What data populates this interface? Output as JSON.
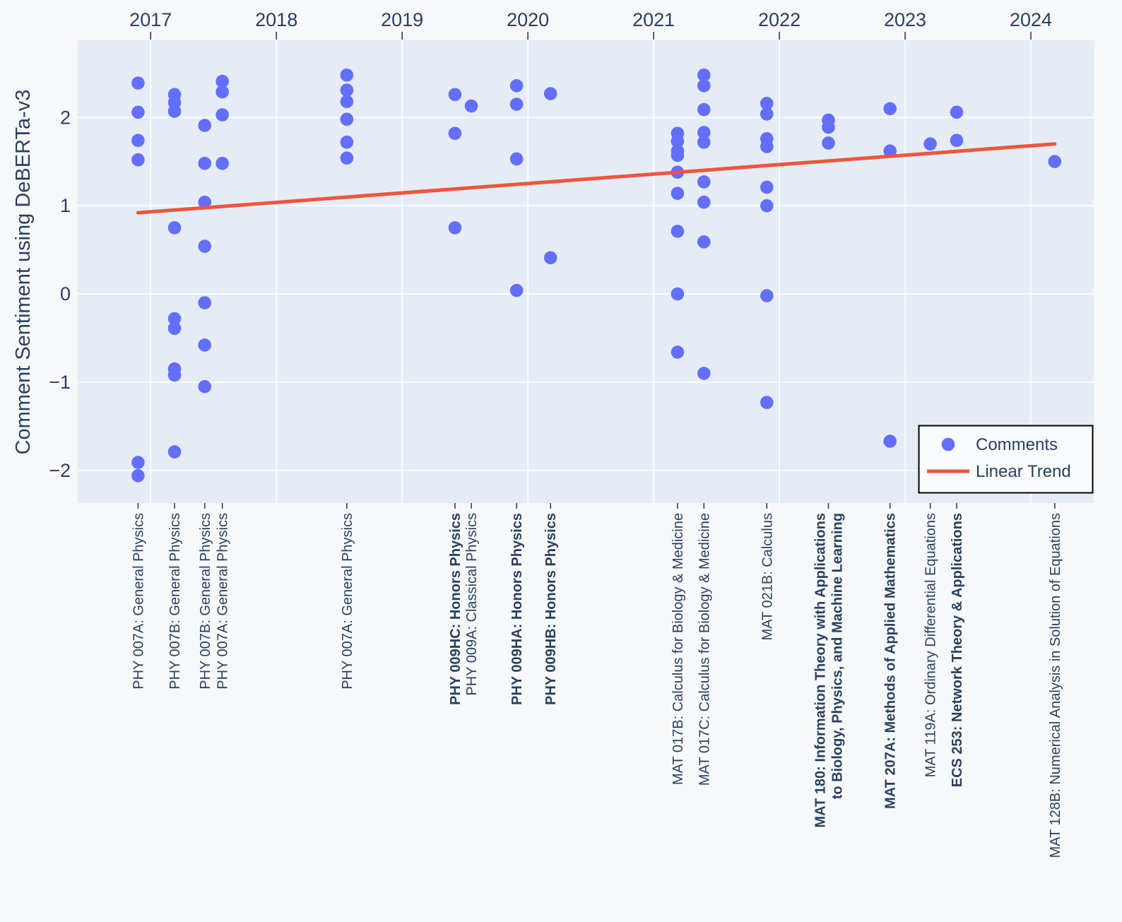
{
  "chart_data": {
    "type": "scatter",
    "title": "",
    "xlabel": "",
    "ylabel": "Comment Sentiment using DeBERTa-v3",
    "x_axis": {
      "position": "top",
      "ticks": [
        2017,
        2018,
        2019,
        2020,
        2021,
        2022,
        2023,
        2024
      ],
      "range": [
        2016.42,
        2024.5
      ]
    },
    "y_axis": {
      "ticks": [
        2,
        1,
        0,
        -1,
        -2
      ],
      "tick_labels": [
        "2",
        "1",
        "0",
        "−1",
        "−2"
      ],
      "range": [
        -2.37,
        2.875
      ]
    },
    "grid": true,
    "legend": {
      "position": "bottom-right",
      "items": [
        {
          "label": "Comments",
          "glyph": "marker",
          "color": "#636EFA"
        },
        {
          "label": "Linear Trend",
          "glyph": "line",
          "color": "#EF553B"
        }
      ]
    },
    "series": [
      {
        "name": "Comments",
        "type": "scatter",
        "color": "#636EFA",
        "columns": [
          {
            "label": "PHY 007A: General Physics",
            "lines": [
              "PHY 007A: General Physics"
            ],
            "bold": false,
            "year": 2016.9,
            "values": [
              2.39,
              2.06,
              1.74,
              1.52,
              -1.91,
              -2.06
            ]
          },
          {
            "label": "PHY 007B: General Physics",
            "lines": [
              "PHY 007B: General Physics"
            ],
            "bold": false,
            "year": 2017.19,
            "values": [
              2.26,
              2.17,
              2.07,
              0.75,
              -0.28,
              -0.39,
              -0.85,
              -0.92,
              -1.79
            ]
          },
          {
            "label": "PHY 007B: General Physics",
            "lines": [
              "PHY 007B: General Physics"
            ],
            "bold": false,
            "year": 2017.43,
            "values": [
              1.91,
              1.48,
              1.04,
              0.54,
              -0.1,
              -0.58,
              -1.05
            ]
          },
          {
            "label": "PHY 007A: General Physics",
            "lines": [
              "PHY 007A: General Physics"
            ],
            "bold": false,
            "year": 2017.57,
            "values": [
              2.41,
              2.29,
              2.03,
              1.48
            ]
          },
          {
            "label": "PHY 007A: General Physics",
            "lines": [
              "PHY 007A: General Physics"
            ],
            "bold": false,
            "year": 2018.56,
            "values": [
              2.48,
              2.31,
              2.18,
              1.98,
              1.72,
              1.54
            ]
          },
          {
            "label": "PHY 009HC: Honors Physics",
            "lines": [
              "PHY 009HC: Honors Physics"
            ],
            "bold": true,
            "year": 2019.42,
            "values": [
              2.26,
              1.82,
              0.75
            ]
          },
          {
            "label": "PHY 009A: Classical Physics",
            "lines": [
              "PHY 009A: Classical Physics"
            ],
            "bold": false,
            "year": 2019.55,
            "values": [
              2.13
            ]
          },
          {
            "label": "PHY 009HA: Honors Physics",
            "lines": [
              "PHY 009HA: Honors Physics"
            ],
            "bold": true,
            "year": 2019.91,
            "values": [
              2.36,
              2.15,
              1.53,
              0.04
            ]
          },
          {
            "label": "PHY 009HB: Honors Physics",
            "lines": [
              "PHY 009HB: Honors Physics"
            ],
            "bold": true,
            "year": 2020.18,
            "values": [
              2.27,
              0.41
            ]
          },
          {
            "label": "MAT 017B: Calculus for Biology & Medicine",
            "lines": [
              "MAT 017B: Calculus for Biology & Medicine"
            ],
            "bold": false,
            "year": 2021.19,
            "values": [
              1.82,
              1.73,
              1.62,
              1.57,
              1.38,
              1.14,
              0.71,
              0.0,
              -0.66
            ]
          },
          {
            "label": "MAT 017C: Calculus for Biology & Medicine",
            "lines": [
              "MAT 017C: Calculus for Biology & Medicine"
            ],
            "bold": false,
            "year": 2021.4,
            "values": [
              2.48,
              2.36,
              2.09,
              1.83,
              1.72,
              1.27,
              1.04,
              0.59,
              -0.9
            ]
          },
          {
            "label": "MAT 021B: Calculus",
            "lines": [
              "MAT 021B: Calculus"
            ],
            "bold": false,
            "year": 2021.9,
            "values": [
              2.16,
              2.04,
              1.76,
              1.67,
              1.21,
              1.0,
              -0.02,
              -1.23
            ]
          },
          {
            "label": "MAT 180: Information Theory with Applications to Biology, Physics, and Machine Learning",
            "lines": [
              "MAT 180: Information Theory with Applications",
              "to Biology, Physics, and Machine Learning"
            ],
            "bold": true,
            "year": 2022.39,
            "values": [
              1.97,
              1.89,
              1.71
            ]
          },
          {
            "label": "MAT 207A: Methods of Applied Mathematics",
            "lines": [
              "MAT 207A: Methods of Applied Mathematics"
            ],
            "bold": true,
            "year": 2022.88,
            "values": [
              2.1,
              1.62,
              -1.67
            ]
          },
          {
            "label": "MAT 119A: Ordinary Differential Equations",
            "lines": [
              "MAT 119A: Ordinary Differential Equations"
            ],
            "bold": false,
            "year": 2023.2,
            "values": [
              1.7
            ]
          },
          {
            "label": "ECS 253: Network Theory & Applications",
            "lines": [
              "ECS 253: Network Theory & Applications"
            ],
            "bold": true,
            "year": 2023.41,
            "values": [
              2.06,
              1.74
            ]
          },
          {
            "label": "MAT 128B: Numerical Analysis in Solution of Equations",
            "lines": [
              "MAT 128B: Numerical Analysis in Solution of Equations"
            ],
            "bold": false,
            "year": 2024.19,
            "values": [
              1.5
            ]
          }
        ]
      },
      {
        "name": "Linear Trend",
        "type": "line",
        "color": "#EF553B",
        "x": [
          2016.9,
          2024.19
        ],
        "y": [
          0.92,
          1.7
        ]
      }
    ],
    "colors": {
      "marker": "#636EFA",
      "trend": "#EF553B",
      "plot_bg": "#E5ECF6",
      "paper_bg": "#F7F8F9",
      "grid": "#FFFFFF",
      "text": "#2A3F5F",
      "legend_bg": "#FAFBFD",
      "legend_border": "#000000"
    }
  }
}
